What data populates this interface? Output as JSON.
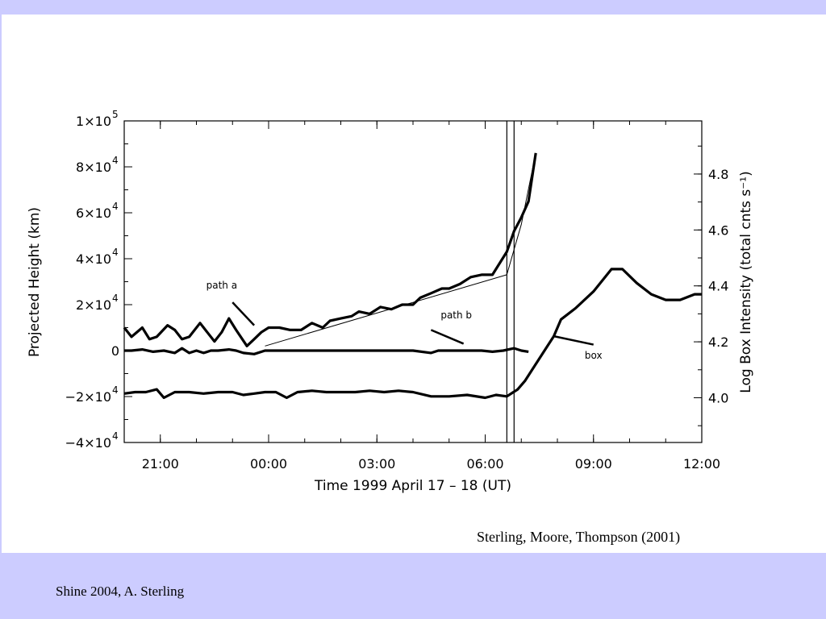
{
  "slide": {
    "citation": "Sterling, Moore, Thompson (2001)",
    "footer": "Shine 2004, A. Sterling",
    "band_color": "#ccccff"
  },
  "chart_data": {
    "type": "line",
    "title": "",
    "xlabel": "Time 1999 April 17 – 18 (UT)",
    "ylabel_left": "Projected Height (km)",
    "ylabel_right": "Log Box Intensity (total cnts s⁻¹)",
    "x_units": "hours from 00:00 UT 18 April 1999",
    "xlim": [
      -4,
      12
    ],
    "ylim_left": [
      -40000,
      100000
    ],
    "ylim_right": [
      3.84,
      4.99
    ],
    "grid": false,
    "x_ticks": [
      {
        "value": -3,
        "label": "21:00"
      },
      {
        "value": 0,
        "label": "00:00"
      },
      {
        "value": 3,
        "label": "03:00"
      },
      {
        "value": 6,
        "label": "06:00"
      },
      {
        "value": 9,
        "label": "09:00"
      },
      {
        "value": 12,
        "label": "12:00"
      }
    ],
    "y_left_ticks": [
      {
        "value": 100000,
        "label": "1×10",
        "exp": "5"
      },
      {
        "value": 80000,
        "label": "8×10",
        "exp": "4"
      },
      {
        "value": 60000,
        "label": "6×10",
        "exp": "4"
      },
      {
        "value": 40000,
        "label": "4×10",
        "exp": "4"
      },
      {
        "value": 20000,
        "label": "2×10",
        "exp": "4"
      },
      {
        "value": 0,
        "label": "0",
        "exp": ""
      },
      {
        "value": -20000,
        "label": "−2×10",
        "exp": "4"
      },
      {
        "value": -40000,
        "label": "−4×10",
        "exp": "4"
      }
    ],
    "y_right_ticks": [
      {
        "value": 4.0,
        "label": "4.0"
      },
      {
        "value": 4.2,
        "label": "4.2"
      },
      {
        "value": 4.4,
        "label": "4.4"
      },
      {
        "value": 4.6,
        "label": "4.6"
      },
      {
        "value": 4.8,
        "label": "4.8"
      }
    ],
    "vertical_markers": [
      6.6,
      6.8
    ],
    "series": [
      {
        "name": "path a",
        "axis": "left",
        "x": [
          -4,
          -3.8,
          -3.5,
          -3.3,
          -3.1,
          -2.8,
          -2.6,
          -2.4,
          -2.2,
          -1.9,
          -1.7,
          -1.5,
          -1.3,
          -1.1,
          -0.9,
          -0.6,
          -0.4,
          -0.2,
          0,
          0.3,
          0.6,
          0.9,
          1.2,
          1.5,
          1.7,
          2.0,
          2.3,
          2.5,
          2.8,
          3.1,
          3.4,
          3.7,
          4.0,
          4.2,
          4.5,
          4.8,
          5.0,
          5.3,
          5.6,
          5.9,
          6.2,
          6.6,
          6.8,
          7.0,
          7.2,
          7.4
        ],
        "y": [
          10000,
          6000,
          10000,
          5000,
          6000,
          11000,
          9000,
          5000,
          6000,
          12000,
          8000,
          4000,
          8000,
          14000,
          9000,
          2000,
          5000,
          8000,
          10000,
          10000,
          9000,
          9000,
          12000,
          10000,
          13000,
          14000,
          15000,
          17000,
          16000,
          19000,
          18000,
          20000,
          20000,
          23000,
          25000,
          27000,
          27000,
          29000,
          32000,
          33000,
          33000,
          43000,
          52000,
          58000,
          65000,
          86000
        ]
      },
      {
        "name": "path a fit",
        "axis": "left",
        "x": [
          -0.1,
          6.6,
          6.6,
          7.0,
          7.4
        ],
        "y": [
          2000,
          33000,
          33000,
          55000,
          86000
        ]
      },
      {
        "name": "path b",
        "axis": "left",
        "x": [
          -4,
          -3.8,
          -3.5,
          -3.2,
          -2.9,
          -2.6,
          -2.4,
          -2.2,
          -2.0,
          -1.8,
          -1.6,
          -1.4,
          -1.1,
          -0.9,
          -0.7,
          -0.4,
          -0.1,
          0.2,
          0.6,
          1.0,
          1.5,
          2.0,
          2.5,
          3.0,
          3.5,
          4.0,
          4.5,
          4.7,
          5.0,
          5.3,
          5.6,
          5.9,
          6.2,
          6.5,
          6.8,
          7.0,
          7.2
        ],
        "y": [
          0,
          0,
          500,
          -500,
          0,
          -1000,
          1000,
          -1000,
          0,
          -1000,
          0,
          0,
          500,
          0,
          -1000,
          -1500,
          0,
          0,
          0,
          0,
          0,
          0,
          0,
          0,
          0,
          0,
          -1000,
          0,
          0,
          0,
          0,
          0,
          -500,
          0,
          1000,
          0,
          -500
        ]
      },
      {
        "name": "box",
        "axis": "right",
        "x": [
          -4,
          -3.7,
          -3.4,
          -3.1,
          -2.9,
          -2.6,
          -2.2,
          -1.8,
          -1.4,
          -1.0,
          -0.7,
          -0.4,
          -0.1,
          0.2,
          0.5,
          0.8,
          1.2,
          1.6,
          2.0,
          2.4,
          2.8,
          3.2,
          3.6,
          4.0,
          4.5,
          5.0,
          5.5,
          6.0,
          6.3,
          6.6,
          6.9,
          7.1,
          7.3,
          7.7,
          7.9,
          8.1,
          8.5,
          9.0,
          9.5,
          9.8,
          10.2,
          10.6,
          11.0,
          11.4,
          11.8,
          12.0
        ],
        "y": [
          4.015,
          4.02,
          4.02,
          4.03,
          4.0,
          4.02,
          4.02,
          4.015,
          4.02,
          4.02,
          4.01,
          4.015,
          4.02,
          4.02,
          4.0,
          4.02,
          4.025,
          4.02,
          4.02,
          4.02,
          4.025,
          4.02,
          4.025,
          4.02,
          4.005,
          4.005,
          4.01,
          4.0,
          4.01,
          4.005,
          4.03,
          4.06,
          4.1,
          4.18,
          4.22,
          4.28,
          4.32,
          4.38,
          4.46,
          4.46,
          4.41,
          4.37,
          4.35,
          4.35,
          4.37,
          4.37
        ]
      }
    ],
    "annotations": [
      {
        "text": "path a",
        "x": -1.3,
        "y": 27000
      },
      {
        "text": "path b",
        "x": 5.2,
        "y": 14000
      },
      {
        "text": "box",
        "x": 9.0,
        "y": 4.14
      }
    ]
  }
}
